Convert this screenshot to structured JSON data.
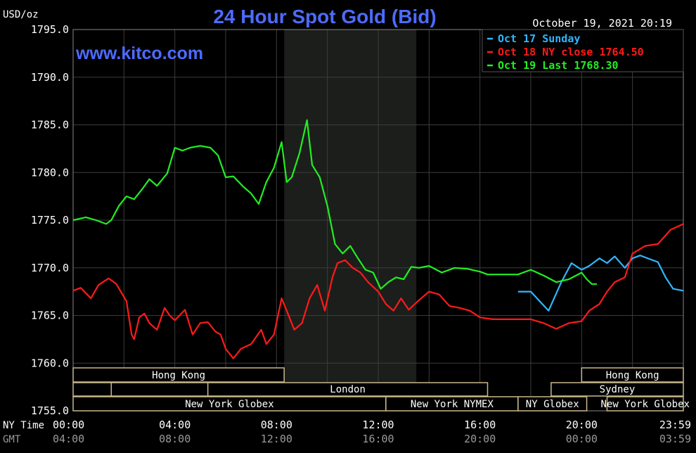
{
  "header": {
    "title": "24 Hour Spot Gold (Bid)",
    "y_unit": "USD/oz",
    "timestamp": "October 19, 2021 20:19",
    "watermark": "www.kitco.com"
  },
  "legend": [
    {
      "label": "Oct 17 Sunday",
      "color": "#2fb7ff"
    },
    {
      "label": "Oct 18 NY close 1764.50",
      "color": "#ff1a1a"
    },
    {
      "label": "Oct 19 Last 1768.30",
      "color": "#22ee22"
    }
  ],
  "axis_labels": {
    "ny_time": "NY Time",
    "gmt": "GMT"
  },
  "sessions": {
    "row1": [
      {
        "label": "Hong Kong",
        "x0": 0,
        "x1": 8.3
      },
      {
        "label": "Hong Kong",
        "x0": 20,
        "x1": 24
      }
    ],
    "row2": [
      {
        "label": "",
        "x0": 0,
        "x1": 1.5
      },
      {
        "label": "",
        "x0": 1.5,
        "x1": 5.3
      },
      {
        "label": "London",
        "x0": 5.3,
        "x1": 16.3
      },
      {
        "label": "Sydney",
        "x0": 18.8,
        "x1": 24
      }
    ],
    "row3": [
      {
        "label": "New York Globex",
        "x0": 0,
        "x1": 12.3
      },
      {
        "label": "New York NYMEX",
        "x0": 12.3,
        "x1": 17.5
      },
      {
        "label": "NY Globex",
        "x0": 17.5,
        "x1": 20.2
      },
      {
        "label": "New York Globex",
        "x0": 21,
        "x1": 24
      }
    ]
  },
  "colors": {
    "background": "#000000",
    "grid": "#3c3c3c",
    "axis_text": "#ffffff",
    "title": "#4d6bff",
    "session_box": "#c8b98a",
    "highlight": "#1c1e1b"
  },
  "chart_data": {
    "type": "line",
    "ylim": [
      1755,
      1795
    ],
    "yticks": [
      "1755.0",
      "1760.0",
      "1765.0",
      "1770.0",
      "1775.0",
      "1780.0",
      "1785.0",
      "1790.0",
      "1795.0"
    ],
    "xlim": [
      0,
      24
    ],
    "xticks_ny": [
      "00:00",
      "04:00",
      "08:00",
      "12:00",
      "16:00",
      "20:00",
      "23:59"
    ],
    "xticks_gmt": [
      "04:00",
      "08:00",
      "12:00",
      "16:00",
      "20:00",
      "00:00",
      "03:59"
    ],
    "highlight_range": [
      8.3,
      13.5
    ],
    "series": [
      {
        "name": "Oct 17 Sunday",
        "color": "#2fb7ff",
        "x": [
          17.5,
          18.0,
          18.7,
          19.2,
          19.6,
          20.0,
          20.3,
          20.7,
          21.0,
          21.3,
          21.7,
          22.0,
          22.3,
          22.7,
          23.0,
          23.3,
          23.6,
          24.0
        ],
        "y": [
          1767.5,
          1767.5,
          1765.5,
          1768.5,
          1770.5,
          1769.8,
          1770.2,
          1771.0,
          1770.5,
          1771.2,
          1770.0,
          1771.0,
          1771.3,
          1770.9,
          1770.6,
          1769.0,
          1767.8,
          1767.6
        ]
      },
      {
        "name": "Oct 18 NY close 1764.50",
        "color": "#ff1a1a",
        "x": [
          0,
          0.3,
          0.7,
          1.0,
          1.4,
          1.7,
          2.1,
          2.3,
          2.4,
          2.6,
          2.8,
          3.0,
          3.3,
          3.6,
          3.8,
          4.0,
          4.4,
          4.7,
          5.0,
          5.3,
          5.6,
          5.8,
          6.0,
          6.3,
          6.6,
          7.0,
          7.4,
          7.6,
          7.9,
          8.2,
          8.4,
          8.7,
          9.0,
          9.3,
          9.6,
          9.9,
          10.2,
          10.4,
          10.7,
          11.0,
          11.3,
          11.6,
          12.0,
          12.3,
          12.6,
          12.9,
          13.2,
          13.6,
          14.0,
          14.4,
          14.8,
          15.2,
          15.6,
          16.0,
          16.5,
          17.0,
          17.5,
          18.0,
          18.5,
          19.0,
          19.5,
          20.0,
          20.3,
          20.7,
          21.0,
          21.3,
          21.7,
          22.0,
          22.5,
          23.0,
          23.5,
          24.0
        ],
        "y": [
          1767.6,
          1767.9,
          1766.8,
          1768.2,
          1768.9,
          1768.3,
          1766.5,
          1763.0,
          1762.5,
          1764.8,
          1765.2,
          1764.2,
          1763.5,
          1765.8,
          1765.0,
          1764.5,
          1765.6,
          1763.0,
          1764.2,
          1764.3,
          1763.3,
          1763.0,
          1761.5,
          1760.5,
          1761.5,
          1762.0,
          1763.5,
          1762.0,
          1763.0,
          1766.8,
          1765.5,
          1763.5,
          1764.2,
          1766.8,
          1768.2,
          1765.5,
          1769.0,
          1770.5,
          1770.8,
          1770.0,
          1769.5,
          1768.5,
          1767.5,
          1766.2,
          1765.5,
          1766.8,
          1765.6,
          1766.6,
          1767.5,
          1767.2,
          1766.0,
          1765.8,
          1765.5,
          1764.8,
          1764.6,
          1764.6,
          1764.6,
          1764.6,
          1764.2,
          1763.6,
          1764.2,
          1764.4,
          1765.5,
          1766.2,
          1767.5,
          1768.5,
          1769.0,
          1771.5,
          1772.3,
          1772.5,
          1774.0,
          1774.6
        ]
      },
      {
        "name": "Oct 19 Last 1768.30",
        "color": "#22ee22",
        "x": [
          0,
          0.5,
          0.9,
          1.3,
          1.5,
          1.8,
          2.1,
          2.4,
          2.7,
          3.0,
          3.3,
          3.7,
          4.0,
          4.3,
          4.6,
          5.0,
          5.4,
          5.7,
          6.0,
          6.3,
          6.7,
          7.0,
          7.3,
          7.6,
          7.9,
          8.2,
          8.4,
          8.6,
          8.9,
          9.2,
          9.4,
          9.7,
          10.0,
          10.3,
          10.6,
          10.9,
          11.2,
          11.5,
          11.8,
          12.1,
          12.4,
          12.7,
          13.0,
          13.3,
          13.6,
          14.0,
          14.5,
          15.0,
          15.5,
          16.0,
          16.3,
          16.6,
          17.0,
          17.5,
          18.0,
          18.5,
          19.0,
          19.5,
          20.0,
          20.2,
          20.4,
          20.6
        ],
        "y": [
          1775.0,
          1775.3,
          1775.0,
          1774.6,
          1775.0,
          1776.5,
          1777.5,
          1777.2,
          1778.2,
          1779.3,
          1778.6,
          1779.9,
          1782.6,
          1782.3,
          1782.6,
          1782.8,
          1782.6,
          1781.8,
          1779.5,
          1779.6,
          1778.5,
          1777.8,
          1776.7,
          1779.0,
          1780.5,
          1783.2,
          1779.0,
          1779.5,
          1782.0,
          1785.5,
          1780.8,
          1779.5,
          1776.5,
          1772.5,
          1771.5,
          1772.3,
          1771.0,
          1769.8,
          1769.5,
          1767.8,
          1768.5,
          1769.0,
          1768.8,
          1770.1,
          1770.0,
          1770.2,
          1769.5,
          1770.0,
          1769.9,
          1769.6,
          1769.3,
          1769.3,
          1769.3,
          1769.3,
          1769.8,
          1769.2,
          1768.5,
          1768.8,
          1769.5,
          1768.8,
          1768.3,
          1768.3
        ]
      }
    ]
  }
}
